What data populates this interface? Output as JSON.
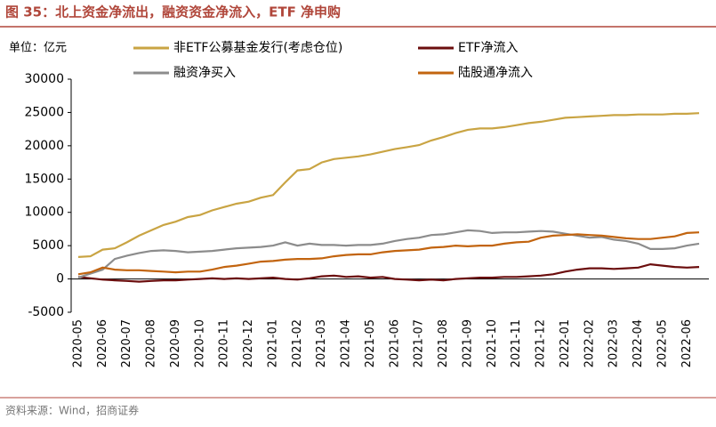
{
  "chart_data": {
    "type": "line",
    "title": "图 35：北上资金净流出，融资资金净流入，ETF 净申购",
    "unit": "单位：亿元",
    "source": "资料来源：Wind，招商证券",
    "categories": [
      "2020-05",
      null,
      "2020-06",
      null,
      "2020-07",
      null,
      "2020-08",
      null,
      "2020-09",
      null,
      "2020-10",
      null,
      "2020-11",
      null,
      "2020-12",
      null,
      "2021-01",
      null,
      "2021-02",
      null,
      "2021-03",
      null,
      "2021-04",
      null,
      "2021-05",
      null,
      "2021-06",
      null,
      "2021-07",
      null,
      "2021-08",
      null,
      "2021-09",
      null,
      "2021-10",
      null,
      "2021-11",
      null,
      "2021-12",
      null,
      "2022-01",
      null,
      "2022-02",
      null,
      "2022-03",
      null,
      "2022-04",
      null,
      "2022-05",
      null,
      "2022-06",
      null
    ],
    "series": [
      {
        "name": "非ETF公募基金发行(考虑仓位)",
        "color": "#c9a443",
        "values": [
          3300,
          3400,
          4400,
          4600,
          5500,
          6500,
          7300,
          8100,
          8600,
          9300,
          9600,
          10300,
          10800,
          11300,
          11600,
          12200,
          12600,
          14500,
          16300,
          16500,
          17500,
          18000,
          18200,
          18400,
          18700,
          19100,
          19500,
          19800,
          20100,
          20800,
          21300,
          21900,
          22400,
          22600,
          22600,
          22800,
          23100,
          23400,
          23600,
          23900,
          24200,
          24300,
          24400,
          24500,
          24600,
          24600,
          24700,
          24700,
          24700,
          24800,
          24800,
          24900
        ]
      },
      {
        "name": "ETF净流入",
        "color": "#6b0d0d",
        "values": [
          300,
          100,
          -100,
          -200,
          -300,
          -400,
          -300,
          -200,
          -200,
          -100,
          0,
          100,
          0,
          100,
          0,
          100,
          200,
          0,
          -100,
          100,
          400,
          500,
          300,
          400,
          200,
          300,
          0,
          -100,
          -200,
          -100,
          -200,
          0,
          100,
          200,
          200,
          300,
          300,
          400,
          500,
          700,
          1100,
          1400,
          1600,
          1600,
          1500,
          1600,
          1700,
          2200,
          2000,
          1800,
          1700,
          1800
        ]
      },
      {
        "name": "融资净买入",
        "color": "#8c8c8c",
        "values": [
          200,
          800,
          1400,
          3000,
          3500,
          3900,
          4200,
          4300,
          4200,
          4000,
          4100,
          4200,
          4400,
          4600,
          4700,
          4800,
          5000,
          5500,
          5000,
          5300,
          5100,
          5100,
          5000,
          5100,
          5100,
          5300,
          5700,
          6000,
          6200,
          6600,
          6700,
          7000,
          7300,
          7200,
          6900,
          7000,
          7000,
          7100,
          7200,
          7100,
          6800,
          6500,
          6200,
          6300,
          5900,
          5700,
          5300,
          4500,
          4500,
          4600,
          5000,
          5300
        ]
      },
      {
        "name": "陆股通净流入",
        "color": "#c2640f",
        "values": [
          700,
          1000,
          1700,
          1400,
          1300,
          1300,
          1200,
          1100,
          1000,
          1100,
          1100,
          1400,
          1800,
          2000,
          2300,
          2600,
          2700,
          2900,
          3000,
          3000,
          3100,
          3400,
          3600,
          3700,
          3700,
          4000,
          4200,
          4300,
          4400,
          4700,
          4800,
          5000,
          4900,
          5000,
          5000,
          5300,
          5500,
          5600,
          6200,
          6500,
          6600,
          6700,
          6600,
          6500,
          6300,
          6100,
          6000,
          6000,
          6200,
          6400,
          6900,
          7000
        ]
      }
    ],
    "ylim": [
      -5000,
      30000
    ],
    "yticks": [
      -5000,
      0,
      5000,
      10000,
      15000,
      20000,
      25000,
      30000
    ]
  }
}
